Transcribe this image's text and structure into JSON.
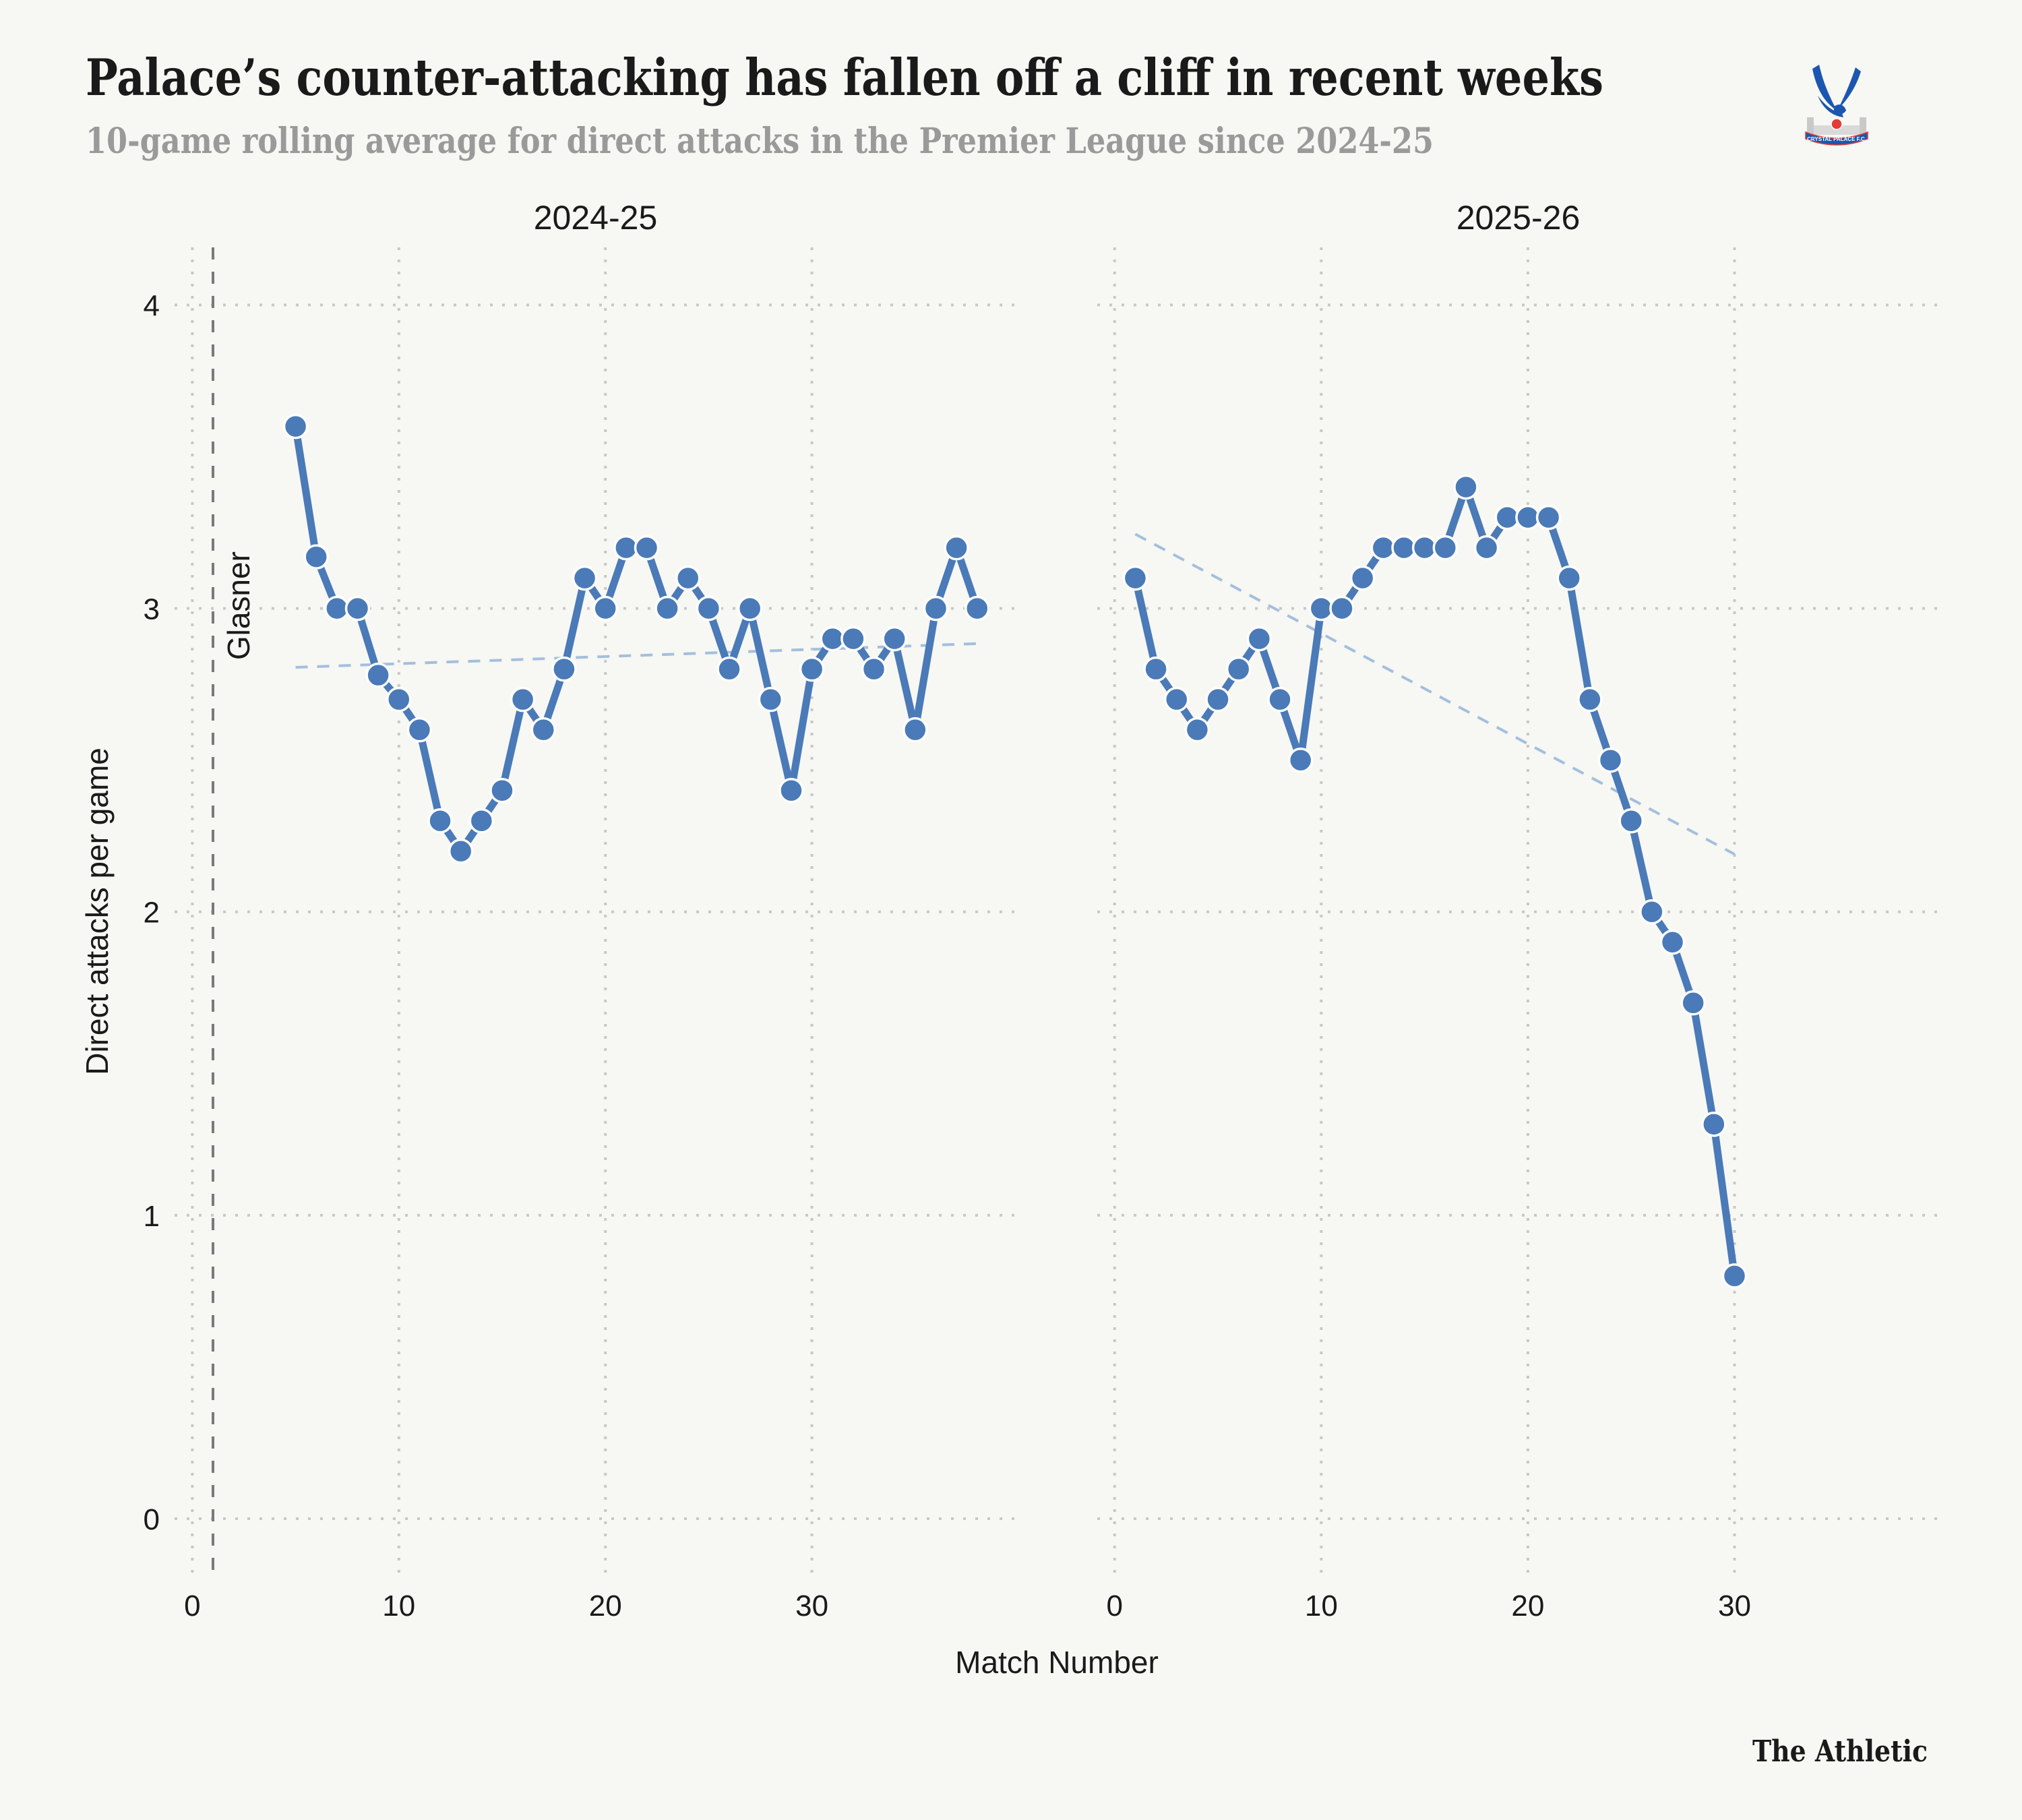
{
  "header": {
    "title": "Palace’s counter-attacking has fallen off a cliff in recent weeks",
    "subtitle": "10-game rolling average for direct attacks in the Premier League since 2024-25"
  },
  "logo": {
    "name": "crystal-palace-crest",
    "text": "CRYSTAL PALACE F.C."
  },
  "footer": {
    "brand": "The Athletic"
  },
  "colors": {
    "background": "#f7f7f3",
    "series": "#4a7ab7",
    "trend": "#a3bfde",
    "grid": "#c8c8c8",
    "annotation_line": "#7a7a7a",
    "text": "#1a1a1a",
    "subtitle": "#9a9a9a"
  },
  "chart_data": {
    "type": "line",
    "title": "Palace’s counter-attacking has fallen off a cliff in recent weeks",
    "subtitle": "10-game rolling average for direct attacks in the Premier League since 2024-25",
    "xlabel": "Match Number",
    "ylabel": "Direct attacks per game",
    "ylim": [
      -0.2,
      4.19
    ],
    "yticks": [
      "0",
      "1",
      "2",
      "3",
      "4"
    ],
    "ytick_values": [
      0,
      1,
      2,
      3,
      4
    ],
    "grid": true,
    "facets": [
      {
        "name": "2024-25",
        "xlim": [
          -0.86,
          39.9
        ],
        "xticks": [
          "0",
          "10",
          "20",
          "30"
        ],
        "xtick_values": [
          0,
          10,
          20,
          30
        ],
        "x": [
          5,
          6,
          7,
          8,
          9,
          10,
          11,
          12,
          13,
          14,
          15,
          16,
          17,
          18,
          19,
          20,
          21,
          22,
          23,
          24,
          25,
          26,
          27,
          28,
          29,
          30,
          31,
          32,
          33,
          34,
          35,
          36,
          37,
          38
        ],
        "values": [
          3.6,
          3.17,
          3.0,
          3.0,
          2.78,
          2.7,
          2.6,
          2.3,
          2.2,
          2.3,
          2.4,
          2.7,
          2.6,
          2.8,
          3.1,
          3.0,
          3.2,
          3.2,
          3.0,
          3.1,
          3.0,
          2.8,
          3.0,
          2.7,
          2.4,
          2.8,
          2.9,
          2.9,
          2.8,
          2.9,
          2.6,
          3.0,
          3.2,
          3.0
        ],
        "trend": {
          "x": [
            5,
            38
          ],
          "y": [
            2.806,
            2.884
          ]
        },
        "annotation": {
          "label": "Glasner",
          "x": 1
        }
      },
      {
        "name": "2025-26",
        "xlim": [
          -0.84,
          39.9
        ],
        "xticks": [
          "0",
          "10",
          "20",
          "30"
        ],
        "xtick_values": [
          0,
          10,
          20,
          30
        ],
        "x": [
          1,
          2,
          3,
          4,
          5,
          6,
          7,
          8,
          9,
          10,
          11,
          12,
          13,
          14,
          15,
          16,
          17,
          18,
          19,
          20,
          21,
          22,
          23,
          24,
          25,
          26,
          27,
          28,
          29,
          30
        ],
        "values": [
          3.1,
          2.8,
          2.7,
          2.6,
          2.7,
          2.8,
          2.9,
          2.7,
          2.5,
          3.0,
          3.0,
          3.1,
          3.2,
          3.2,
          3.2,
          3.2,
          3.4,
          3.2,
          3.3,
          3.3,
          3.3,
          3.1,
          2.7,
          2.5,
          2.3,
          2.0,
          1.9,
          1.7,
          1.3,
          0.8
        ],
        "trend": {
          "x": [
            1,
            30
          ],
          "y": [
            3.245,
            2.19
          ]
        }
      }
    ]
  }
}
